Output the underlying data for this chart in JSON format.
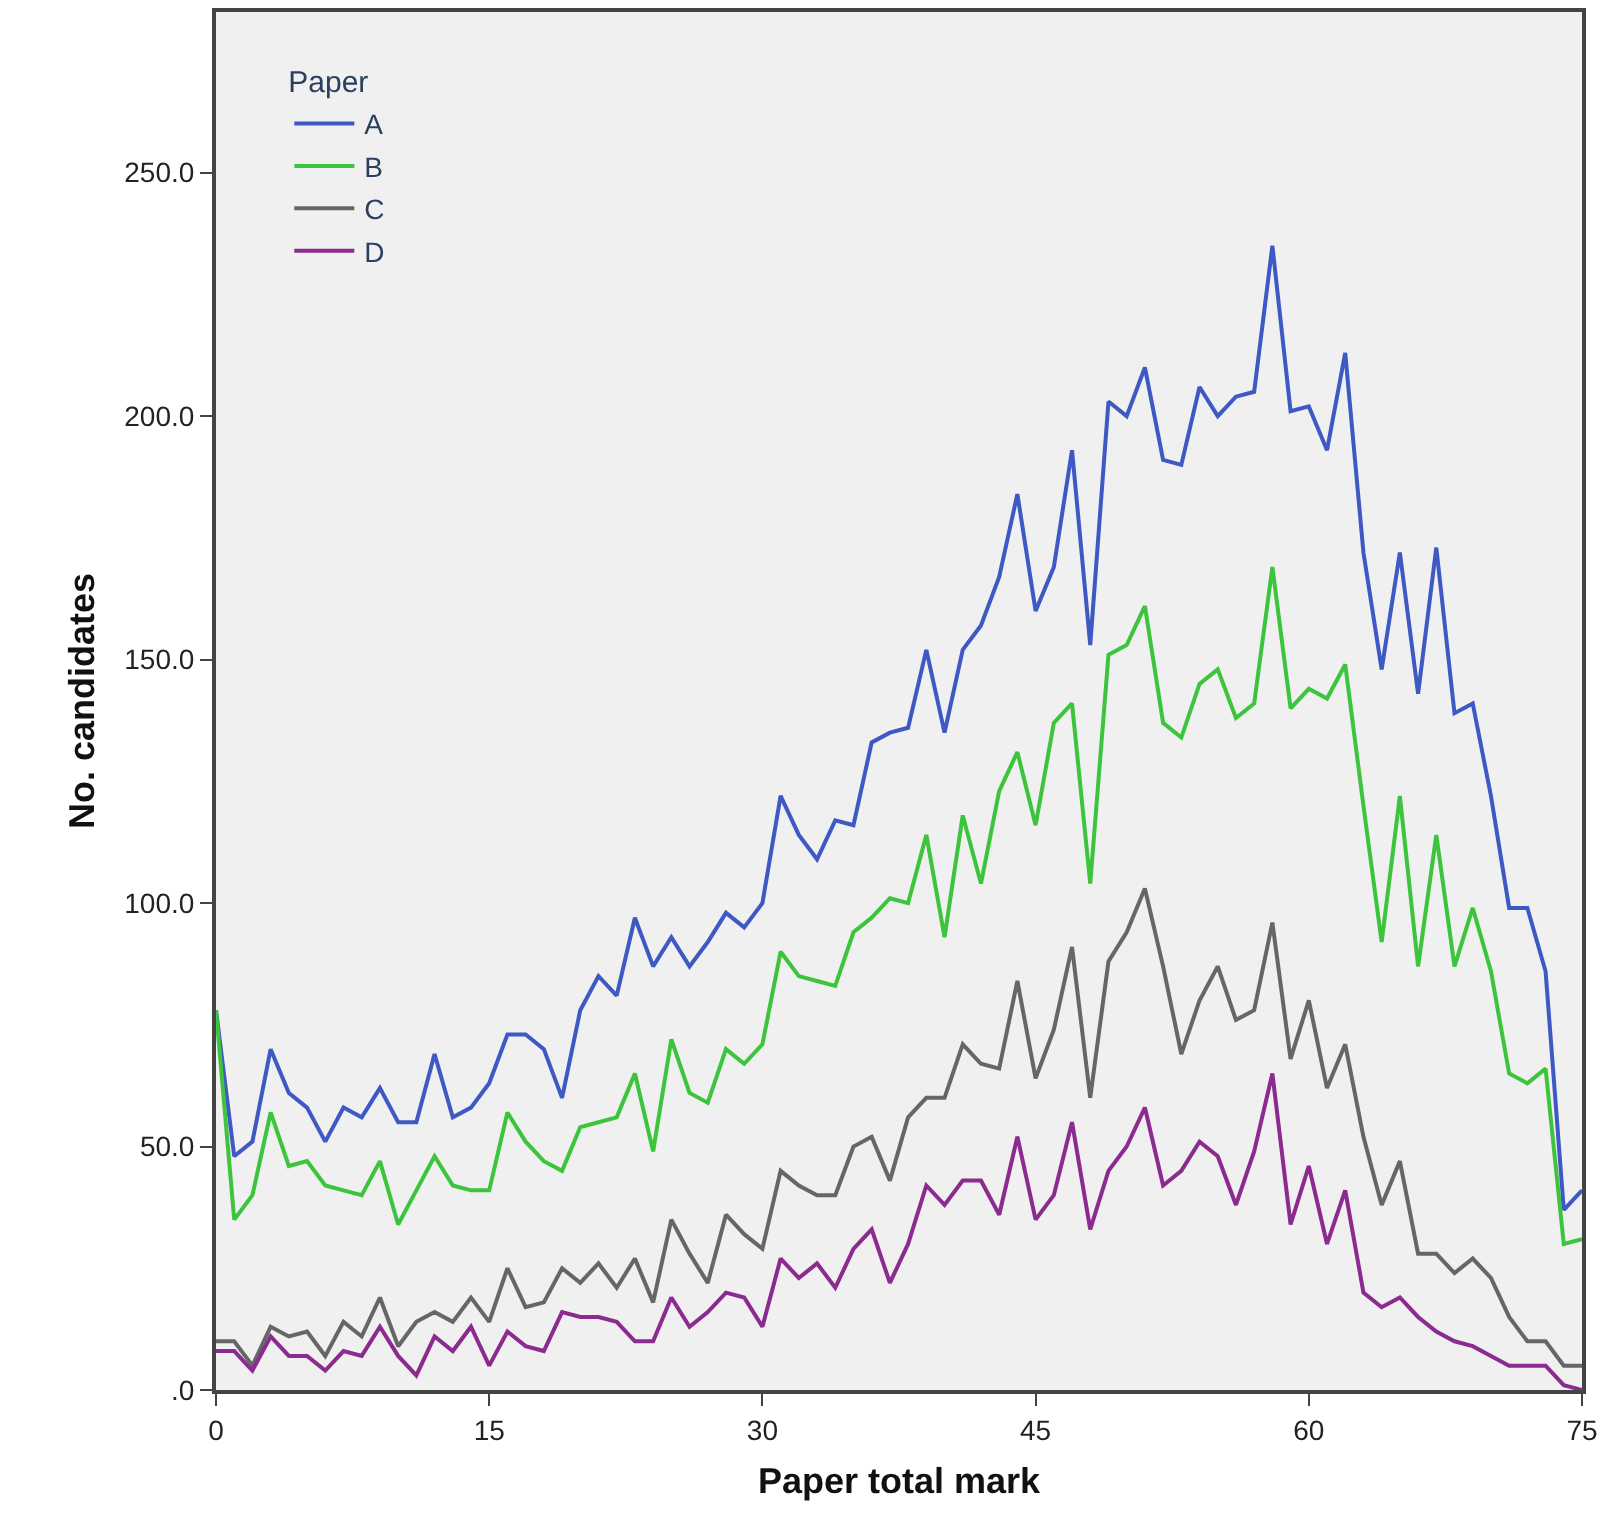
{
  "chart_data": {
    "type": "line",
    "xlabel": "Paper total mark",
    "ylabel": "No. candidates",
    "legend_title": "Paper",
    "legend": "top left",
    "grid": false,
    "marker": "none",
    "line_style": "solid",
    "xlim": [
      0,
      75
    ],
    "xticks": [
      0,
      15,
      30,
      45,
      60,
      75
    ],
    "ylim": [
      0,
      283
    ],
    "yticks": [
      {
        "value": 0,
        "label": ".0"
      },
      {
        "value": 50,
        "label": "50.0"
      },
      {
        "value": 100,
        "label": "100.0"
      },
      {
        "value": 150,
        "label": "150.0"
      },
      {
        "value": 200,
        "label": "200.0"
      },
      {
        "value": 250,
        "label": "250.0"
      }
    ],
    "x": [
      0,
      1,
      2,
      3,
      4,
      5,
      6,
      7,
      8,
      9,
      10,
      11,
      12,
      13,
      14,
      15,
      16,
      17,
      18,
      19,
      20,
      21,
      22,
      23,
      24,
      25,
      26,
      27,
      28,
      29,
      30,
      31,
      32,
      33,
      34,
      35,
      36,
      37,
      38,
      39,
      40,
      41,
      42,
      43,
      44,
      45,
      46,
      47,
      48,
      49,
      50,
      51,
      52,
      53,
      54,
      55,
      56,
      57,
      58,
      59,
      60,
      61,
      62,
      63,
      64,
      65,
      66,
      67,
      68,
      69,
      70,
      71,
      72,
      73,
      74,
      75
    ],
    "series": [
      {
        "name": "A",
        "color": "#3e58c4",
        "values": [
          78,
          48,
          51,
          70,
          61,
          58,
          51,
          58,
          56,
          62,
          55,
          55,
          69,
          56,
          58,
          63,
          73,
          73,
          70,
          60,
          78,
          85,
          81,
          97,
          87,
          93,
          87,
          92,
          98,
          95,
          100,
          122,
          114,
          109,
          117,
          116,
          133,
          135,
          136,
          152,
          135,
          152,
          157,
          167,
          184,
          160,
          169,
          193,
          153,
          203,
          200,
          210,
          191,
          190,
          206,
          200,
          204,
          205,
          235,
          201,
          202,
          193,
          213,
          172,
          148,
          172,
          143,
          173,
          139,
          141,
          122,
          99,
          99,
          86,
          37,
          41
        ]
      },
      {
        "name": "B",
        "color": "#3cc43c",
        "values": [
          78,
          35,
          40,
          57,
          46,
          47,
          42,
          41,
          40,
          47,
          34,
          41,
          48,
          42,
          41,
          41,
          57,
          51,
          47,
          45,
          54,
          55,
          56,
          65,
          49,
          72,
          61,
          59,
          70,
          67,
          71,
          90,
          85,
          84,
          83,
          94,
          97,
          101,
          100,
          114,
          93,
          118,
          104,
          123,
          131,
          116,
          137,
          141,
          104,
          151,
          153,
          161,
          137,
          134,
          145,
          148,
          138,
          141,
          169,
          140,
          144,
          142,
          149,
          120,
          92,
          122,
          87,
          114,
          87,
          99,
          86,
          65,
          63,
          66,
          30,
          31
        ]
      },
      {
        "name": "C",
        "color": "#666666",
        "values": [
          10,
          10,
          5,
          13,
          11,
          12,
          7,
          14,
          11,
          19,
          9,
          14,
          16,
          14,
          19,
          14,
          25,
          17,
          18,
          25,
          22,
          26,
          21,
          27,
          18,
          35,
          28,
          22,
          36,
          32,
          29,
          45,
          42,
          40,
          40,
          50,
          52,
          43,
          56,
          60,
          60,
          71,
          67,
          66,
          84,
          64,
          74,
          91,
          60,
          88,
          94,
          103,
          87,
          69,
          80,
          87,
          76,
          78,
          96,
          68,
          80,
          62,
          71,
          52,
          38,
          47,
          28,
          28,
          24,
          27,
          23,
          15,
          10,
          10,
          5,
          5
        ]
      },
      {
        "name": "D",
        "color": "#8b2a8f",
        "values": [
          8,
          8,
          4,
          11,
          7,
          7,
          4,
          8,
          7,
          13,
          7,
          3,
          11,
          8,
          13,
          5,
          12,
          9,
          8,
          16,
          15,
          15,
          14,
          10,
          10,
          19,
          13,
          16,
          20,
          19,
          13,
          27,
          23,
          26,
          21,
          29,
          33,
          22,
          30,
          42,
          38,
          43,
          43,
          36,
          52,
          35,
          40,
          55,
          33,
          45,
          50,
          58,
          42,
          45,
          51,
          48,
          38,
          49,
          65,
          34,
          46,
          30,
          41,
          20,
          17,
          19,
          15,
          12,
          10,
          9,
          7,
          5,
          5,
          5,
          1,
          0
        ]
      }
    ]
  }
}
